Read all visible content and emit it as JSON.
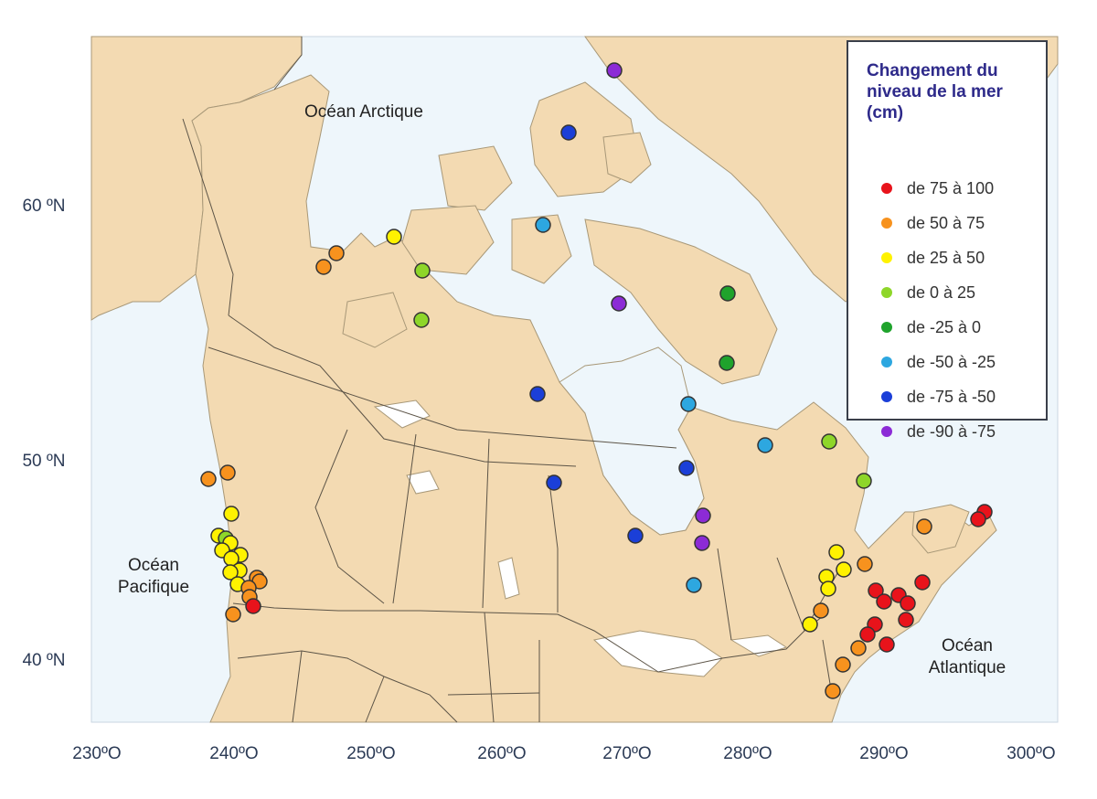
{
  "map": {
    "ocean_labels": {
      "arctic": "Océan Arctique",
      "pacific_line1": "Océan",
      "pacific_line2": "Pacifique",
      "atlantic_line1": "Océan",
      "atlantic_line2": "Atlantique"
    },
    "y_axis": {
      "labels": [
        "60 ºN",
        "50 ºN",
        "40 ºN"
      ]
    },
    "x_axis": {
      "labels": [
        "230ºO",
        "240ºO",
        "250ºO",
        "260ºO",
        "270ºO",
        "280ºO",
        "290ºO",
        "300ºO"
      ]
    },
    "colors": {
      "ocean": "#eef6fb",
      "land": "#f3dab2",
      "border": "#5c5447",
      "water_inland": "#ffffff"
    }
  },
  "legend": {
    "title": "Changement du\nniveau de la mer\n(cm)",
    "items": [
      {
        "label": "de 75 à 100",
        "color": "#e8131b"
      },
      {
        "label": "de 50 à 75",
        "color": "#f7921e"
      },
      {
        "label": "de 25 à 50",
        "color": "#fff200"
      },
      {
        "label": "de 0 à 25",
        "color": "#8ed62a"
      },
      {
        "label": "de -25 à 0",
        "color": "#1fa32c"
      },
      {
        "label": "de -50 à -25",
        "color": "#2da7e0"
      },
      {
        "label": "de -75 à -50",
        "color": "#1b3fd8"
      },
      {
        "label": "de -90 à -75",
        "color": "#8c2bd6"
      }
    ]
  }
}
